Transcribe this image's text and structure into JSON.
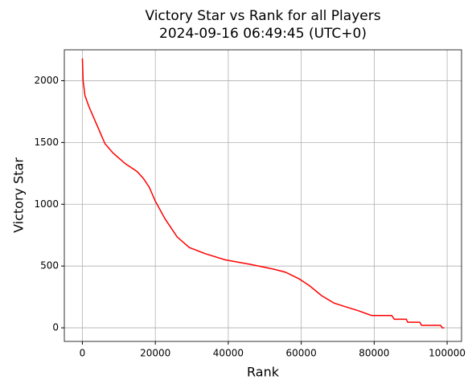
{
  "chart_data": {
    "type": "line",
    "title": [
      "Victory Star vs Rank for all Players",
      "2024-09-16 06:49:45 (UTC+0)"
    ],
    "x_label": "Rank",
    "y_label": "Victory Star",
    "x": [
      0,
      200,
      700,
      1800,
      4000,
      6200,
      8400,
      11700,
      15000,
      16700,
      18300,
      20000,
      22700,
      26000,
      29300,
      33700,
      39200,
      45800,
      52400,
      55700,
      59500,
      62300,
      65600,
      69000,
      72200,
      75500,
      79300,
      84800,
      85500,
      88800,
      89200,
      92500,
      93000,
      98200,
      98700,
      99200
    ],
    "series": [
      {
        "name": "Victory Star",
        "color": "#ff0000",
        "values": [
          2180,
          2000,
          1880,
          1790,
          1640,
          1490,
          1415,
          1330,
          1265,
          1210,
          1140,
          1025,
          880,
          735,
          650,
          600,
          550,
          515,
          475,
          450,
          395,
          340,
          260,
          200,
          170,
          140,
          100,
          100,
          70,
          70,
          45,
          45,
          20,
          20,
          0,
          0
        ]
      }
    ],
    "xlim": [
      -4950,
      103950
    ],
    "ylim": [
      -110,
      2250
    ],
    "xticks": [
      0,
      20000,
      40000,
      60000,
      80000,
      100000
    ],
    "yticks": [
      0,
      500,
      1000,
      1500,
      2000
    ],
    "grid": true
  }
}
